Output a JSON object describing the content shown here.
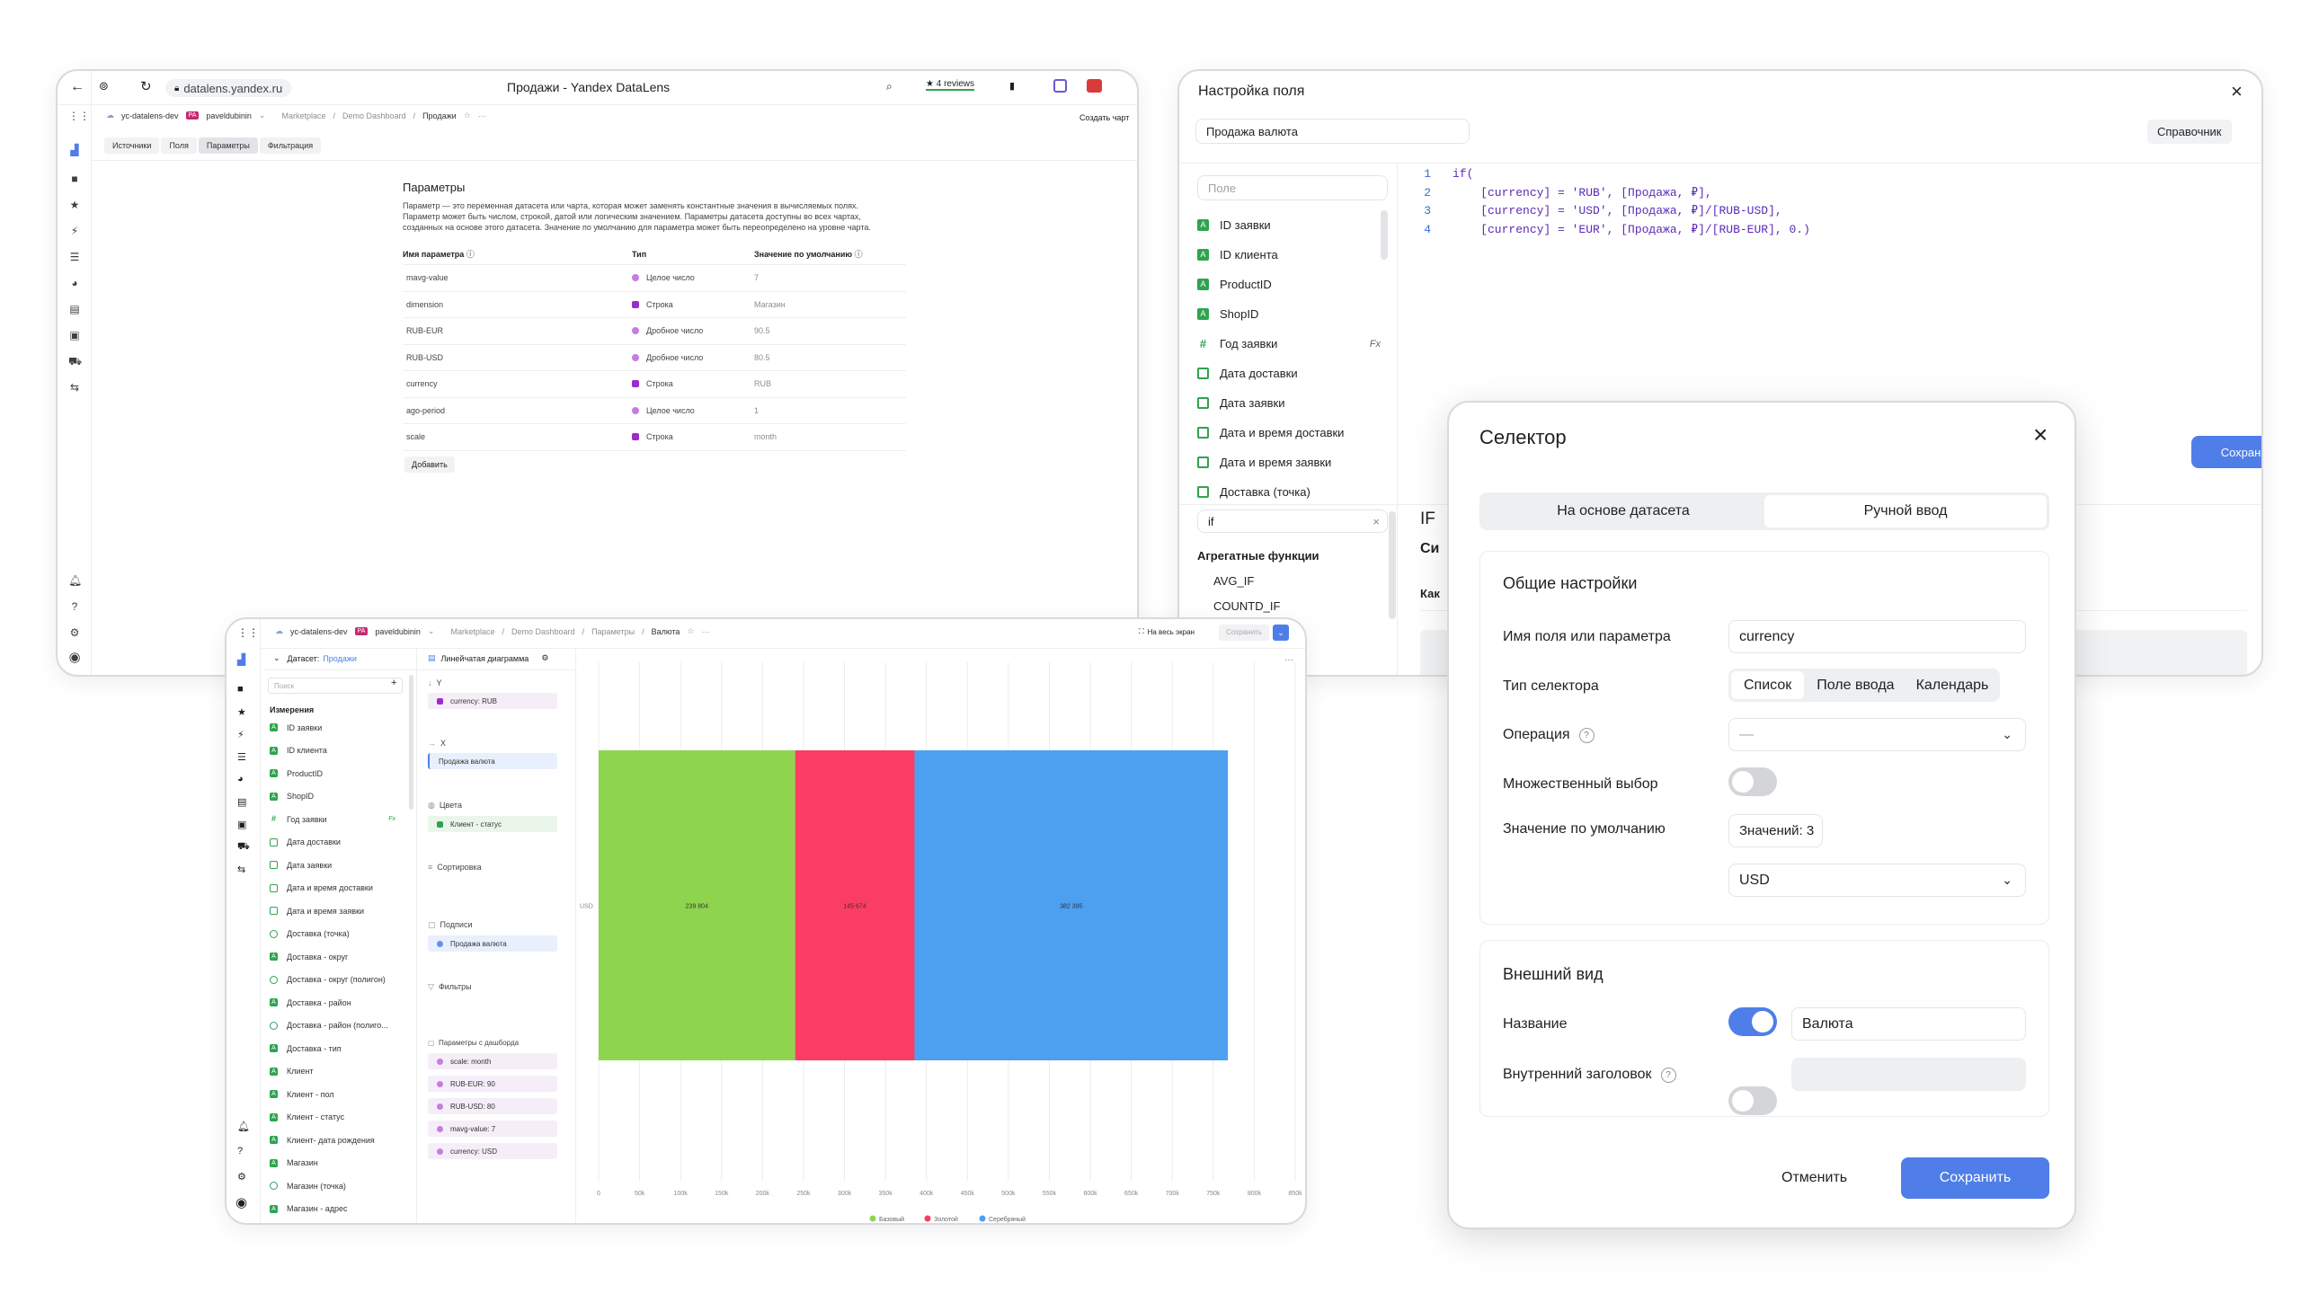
{
  "w1": {
    "url": "datalens.yandex.ru",
    "title": "Продажи - Yandex DataLens",
    "reviews": "4 reviews",
    "workspace": "yc-datalens-dev",
    "user_badge": "PA",
    "user": "paveldubinin",
    "breadcrumbs": [
      "Marketplace",
      "Demo Dashboard",
      "Продажи"
    ],
    "create_chart": "Создать чарт",
    "tabs": [
      "Источники",
      "Поля",
      "Параметры",
      "Фильтрация"
    ],
    "heading": "Параметры",
    "description": "Параметр — это переменная датасета или чарта, которая может заменять константные значения в вычисляемых полях. Параметр может быть числом, строкой, датой или логическим значением. Параметры датасета доступны во всех чартах, созданных на основе этого датасета. Значение по умолчанию для параметра может быть переопределено на уровне чарта.",
    "col_name": "Имя параметра",
    "col_type": "Тип",
    "col_default": "Значение по умолчанию",
    "params": [
      {
        "name": "mavg-value",
        "type": "Целое число",
        "kind": "num",
        "value": "7"
      },
      {
        "name": "dimension",
        "type": "Строка",
        "kind": "str",
        "value": "Магазин"
      },
      {
        "name": "RUB-EUR",
        "type": "Дробное число",
        "kind": "num",
        "value": "90.5"
      },
      {
        "name": "RUB-USD",
        "type": "Дробное число",
        "kind": "num",
        "value": "80.5"
      },
      {
        "name": "currency",
        "type": "Строка",
        "kind": "str",
        "value": "RUB"
      },
      {
        "name": "ago-period",
        "type": "Целое число",
        "kind": "num",
        "value": "1"
      },
      {
        "name": "scale",
        "type": "Строка",
        "kind": "str",
        "value": "month"
      }
    ],
    "add_button": "Добавить"
  },
  "w2": {
    "title": "Настройка поля",
    "field_name": "Продажа валюта",
    "reference": "Справочник",
    "search_placeholder": "Поле",
    "fields": [
      {
        "label": "ID заявки",
        "icon": "g"
      },
      {
        "label": "ID клиента",
        "icon": "g"
      },
      {
        "label": "ProductID",
        "icon": "g"
      },
      {
        "label": "ShopID",
        "icon": "g"
      },
      {
        "label": "Год заявки",
        "icon": "hash"
      },
      {
        "label": "Дата доставки",
        "icon": "cal"
      },
      {
        "label": "Дата заявки",
        "icon": "cal"
      },
      {
        "label": "Дата и время доставки",
        "icon": "cal"
      },
      {
        "label": "Дата и время заявки",
        "icon": "cal"
      },
      {
        "label": "Доставка (точка)",
        "icon": "cal"
      }
    ],
    "formula_badge": "Fx",
    "func_search": "if",
    "func_group": "Агрегатные функции",
    "functions": [
      "AVG_IF",
      "COUNTD_IF"
    ],
    "code_lines": [
      {
        "n": "1",
        "text": "if("
      },
      {
        "n": "2",
        "text": "    [currency] = 'RUB', [Продажа, ₽],"
      },
      {
        "n": "3",
        "text": "    [currency] = 'USD', [Продажа, ₽]/[RUB-USD],"
      },
      {
        "n": "4",
        "text": "    [currency] = 'EUR', [Продажа, ₽]/[RUB-EUR], 0.)"
      }
    ],
    "save": "Сохранить",
    "doc_title": "IF",
    "doc_sub": "Си",
    "doc_tab": "Как"
  },
  "w3": {
    "workspace": "yc-datalens-dev",
    "user_badge": "PA",
    "user": "paveldubinin",
    "breadcrumbs": [
      "Marketplace",
      "Demo Dashboard",
      "Параметры",
      "Валюта"
    ],
    "fullscreen": "На весь экран",
    "save": "Сохранить",
    "dataset_label": "Датасет:",
    "dataset_name": "Продажи",
    "search_placeholder": "Поиск",
    "dims_header": "Измерения",
    "dims": [
      "ID заявки",
      "ID клиента",
      "ProductID",
      "ShopID",
      "Год заявки",
      "Дата доставки",
      "Дата заявки",
      "Дата и время доставки",
      "Дата и время заявки",
      "Доставка (точка)",
      "Доставка - округ",
      "Доставка - округ (полигон)",
      "Доставка - район",
      "Доставка - район (полиго...",
      "Доставка - тип",
      "Клиент",
      "Клиент - пол",
      "Клиент - статус",
      "Клиент- дата рождения",
      "Магазин",
      "Магазин (точка)",
      "Магазин - адрес"
    ],
    "chart_type": "Линейчатая диаграмма",
    "sections": {
      "y": "Y",
      "y_chip": "currency: RUB",
      "x": "X",
      "x_chip": "Продажа валюта",
      "color": "Цвета",
      "color_chip": "Клиент - статус",
      "sort": "Сортировка",
      "labels": "Подписи",
      "labels_chip": "Продажа валюта",
      "filters": "Фильтры",
      "dash_params": "Параметры с дашборда",
      "dash_chips": [
        "scale: month",
        "RUB-EUR: 90",
        "RUB-USD: 80",
        "mavg-value: 7",
        "currency: USD"
      ]
    }
  },
  "chart_data": {
    "type": "bar",
    "orientation": "horizontal-stacked",
    "categories": [
      "USD"
    ],
    "series": [
      {
        "name": "Базовый",
        "values": [
          239804
        ],
        "label": "239 804",
        "color": "#8ed44e"
      },
      {
        "name": "Золотой",
        "values": [
          145674
        ],
        "label": "145 674",
        "color": "#f93d64"
      },
      {
        "name": "Серебряный",
        "values": [
          382395
        ],
        "label": "382 395",
        "color": "#4d9ff0"
      }
    ],
    "xticks": [
      "0",
      "50k",
      "100k",
      "150k",
      "200k",
      "250k",
      "300k",
      "350k",
      "400k",
      "450k",
      "500k",
      "550k",
      "600k",
      "650k",
      "700k",
      "750k",
      "800k",
      "850k"
    ],
    "xlim": [
      0,
      850000
    ],
    "legend": "bottom"
  },
  "w4": {
    "title": "Селектор",
    "tab_dataset": "На основе датасета",
    "tab_manual": "Ручной ввод",
    "general": "Общие настройки",
    "field_label": "Имя поля или параметра",
    "field_value": "currency",
    "type_label": "Тип селектора",
    "types": [
      "Список",
      "Поле ввода",
      "Календарь"
    ],
    "operation_label": "Операция",
    "operation_value": "—",
    "multi_label": "Множественный выбор",
    "default_label": "Значение по умолчанию",
    "values_count": "Значений: 3",
    "default_value": "USD",
    "appearance": "Внешний вид",
    "name_label": "Название",
    "name_value": "Валюта",
    "inner_title_label": "Внутренний заголовок",
    "cancel": "Отменить",
    "save": "Сохранить"
  }
}
